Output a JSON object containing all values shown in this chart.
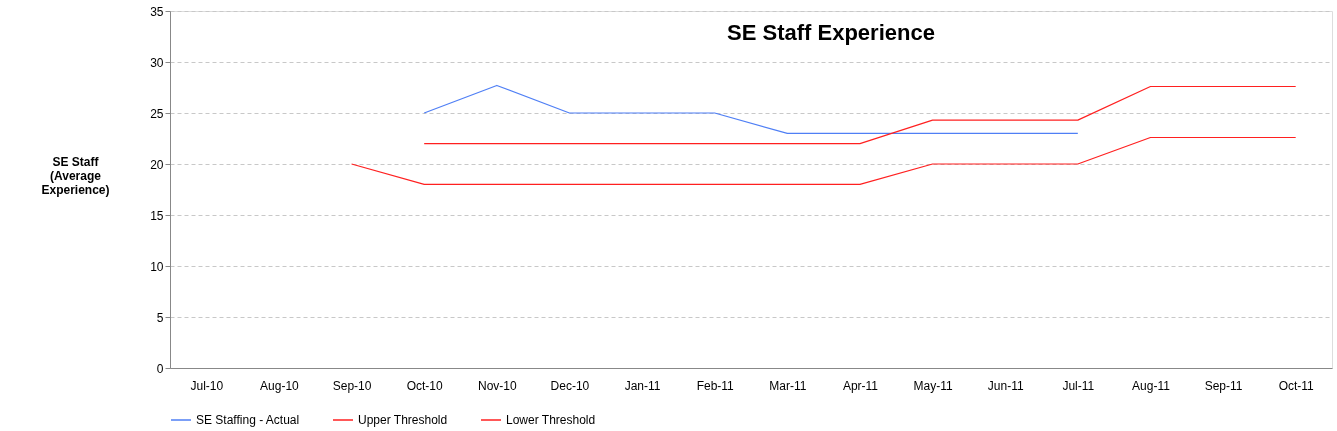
{
  "chart_data": {
    "type": "line",
    "title": "SE Staff Experience",
    "ylabel": "SE Staff (Average Experience)",
    "categories": [
      "Jul-10",
      "Aug-10",
      "Sep-10",
      "Oct-10",
      "Nov-10",
      "Dec-10",
      "Jan-11",
      "Feb-11",
      "Mar-11",
      "Apr-11",
      "May-11",
      "Jun-11",
      "Jul-11",
      "Aug-11",
      "Sep-11",
      "Oct-11"
    ],
    "series": [
      {
        "name": "SE Staffing - Actual",
        "color": "#4f7ff5",
        "values": [
          null,
          null,
          null,
          25,
          27.7,
          25,
          25,
          25,
          23,
          23,
          23,
          23,
          23,
          null,
          null,
          null
        ]
      },
      {
        "name": "Upper Threshold",
        "color": "#ff2020",
        "values": [
          null,
          null,
          null,
          22,
          22,
          22,
          22,
          22,
          22,
          22,
          24.3,
          24.3,
          24.3,
          27.6,
          27.6,
          27.6
        ]
      },
      {
        "name": "Lower Threshold",
        "color": "#ff2020",
        "values": [
          null,
          null,
          20,
          18,
          18,
          18,
          18,
          18,
          18,
          18,
          20,
          20,
          20,
          22.6,
          22.6,
          22.6
        ]
      }
    ],
    "ylim": [
      0,
      35
    ],
    "yticks": [
      0,
      5,
      10,
      15,
      20,
      25,
      30,
      35
    ],
    "grid": "y",
    "legend": "bottom",
    "marker": "none",
    "line_style": "solid"
  }
}
